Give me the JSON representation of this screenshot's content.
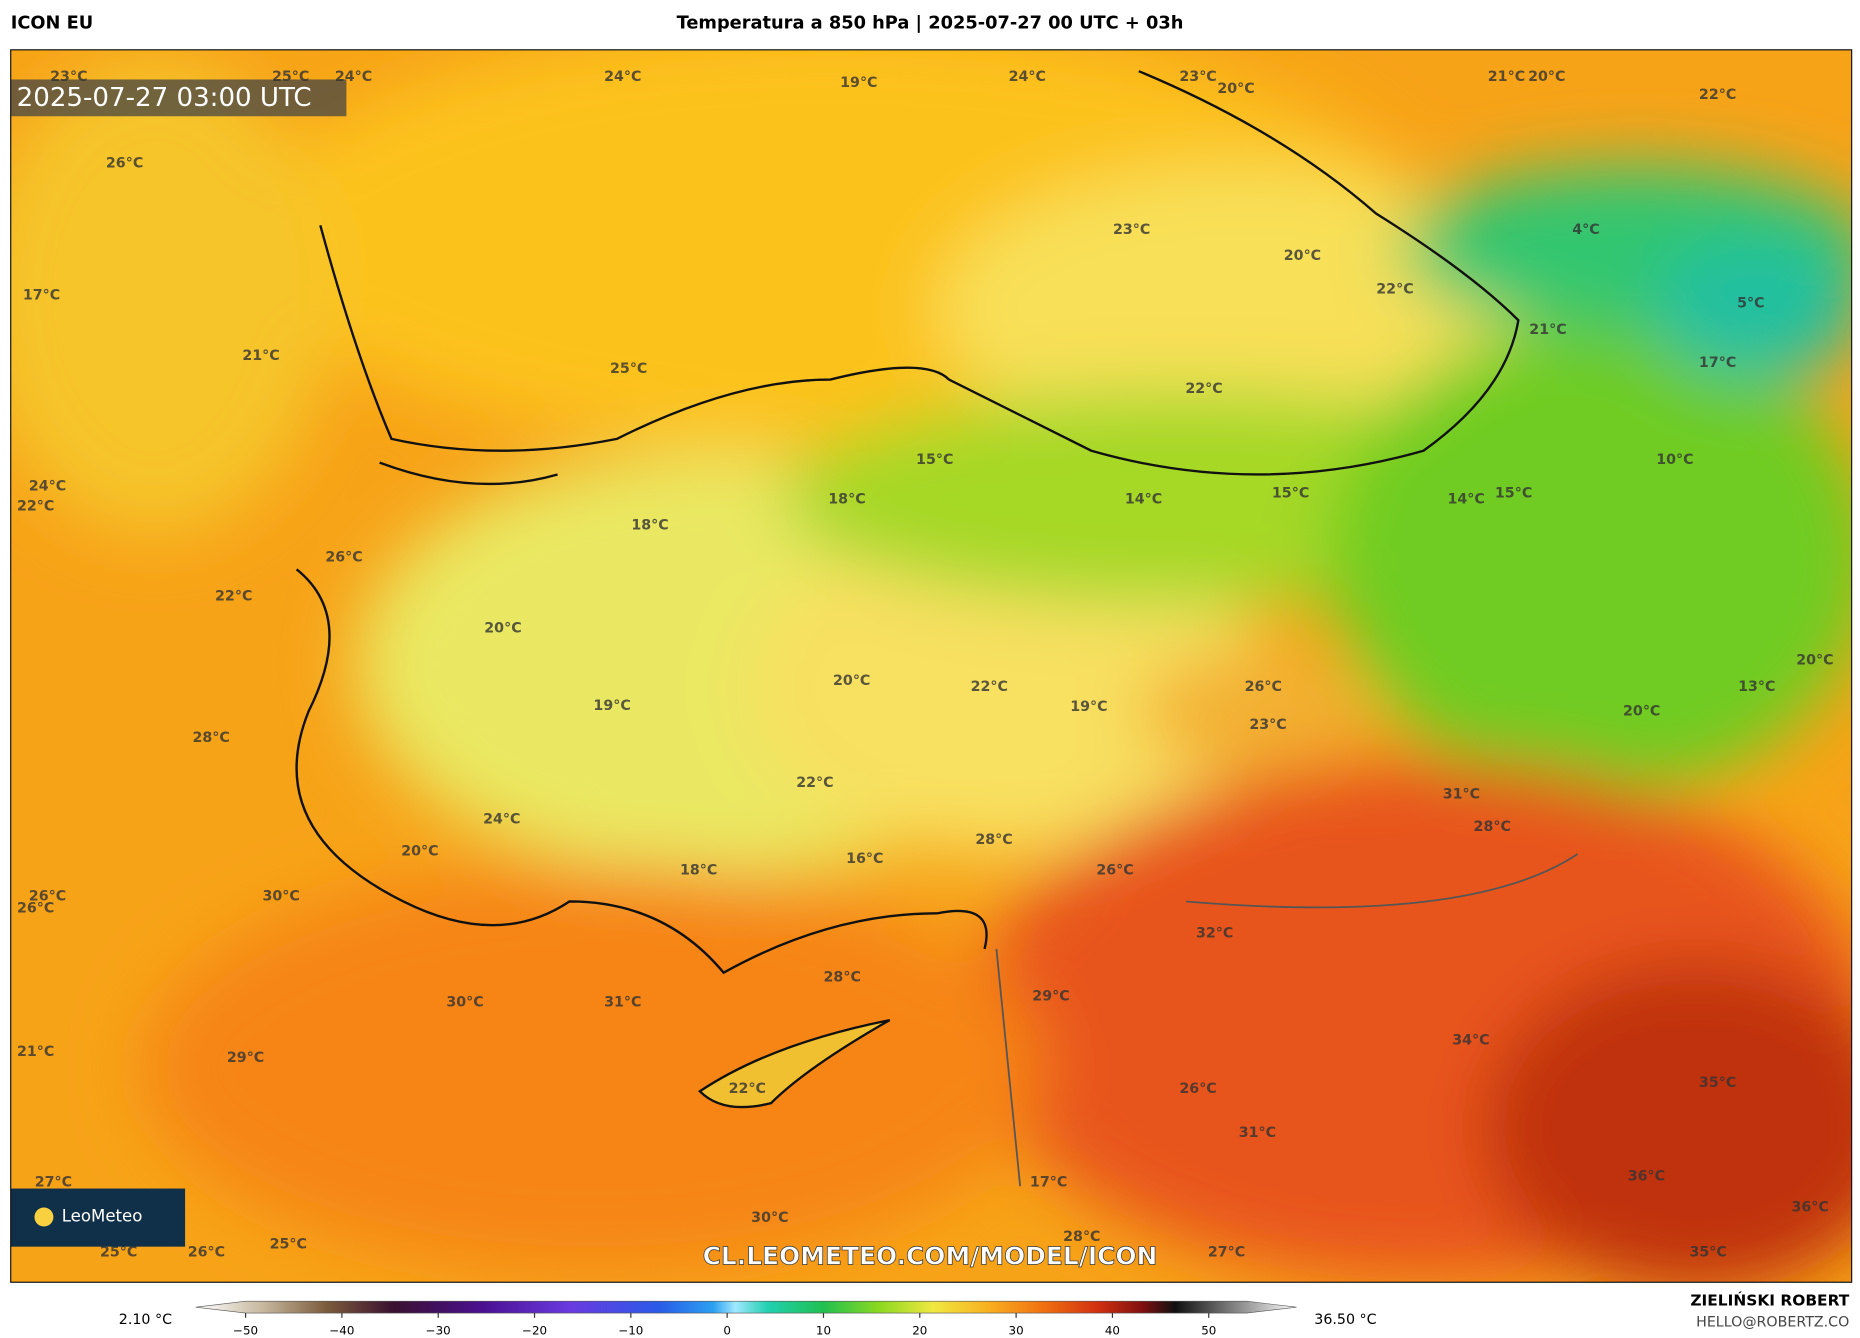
{
  "header": {
    "model": "ICON EU",
    "title": "Temperatura a 850 hPa | 2025-07-27 00 UTC + 03h"
  },
  "map": {
    "timestamp": "2025-07-27 03:00 UTC",
    "watermark": "CL.LEOMETEO.COM/MODEL/ICON",
    "logo": "LeoMeteo",
    "labels": [
      "23°C",
      "25°C",
      "24°C",
      "24°C",
      "19°C",
      "24°C",
      "23°C",
      "20°C",
      "21°C",
      "20°C",
      "22°C",
      "26°C",
      "23°C",
      "20°C",
      "22°C",
      "4°C",
      "5°C",
      "17°C",
      "21°C",
      "25°C",
      "22°C",
      "21°C",
      "17°C",
      "15°C",
      "10°C",
      "24°C",
      "22°C",
      "18°C",
      "14°C",
      "15°C",
      "14°C",
      "15°C",
      "18°C",
      "26°C",
      "22°C",
      "20°C",
      "20°C",
      "22°C",
      "19°C",
      "26°C",
      "13°C",
      "20°C",
      "19°C",
      "23°C",
      "20°C",
      "28°C",
      "22°C",
      "31°C",
      "28°C",
      "24°C",
      "20°C",
      "16°C",
      "28°C",
      "18°C",
      "26°C",
      "26°C",
      "30°C",
      "26°C",
      "32°C",
      "28°C",
      "30°C",
      "31°C",
      "29°C",
      "34°C",
      "21°C",
      "29°C",
      "22°C",
      "26°C",
      "35°C",
      "31°C",
      "27°C",
      "17°C",
      "36°C",
      "30°C",
      "36°C",
      "28°C",
      "25°C",
      "26°C",
      "25°C",
      "27°C",
      "35°C"
    ]
  },
  "colorbar": {
    "min_label": "2.10 °C",
    "max_label": "36.50 °C",
    "ticks": [
      {
        "value": -50,
        "label": "−50"
      },
      {
        "value": -40,
        "label": "−40"
      },
      {
        "value": -30,
        "label": "−30"
      },
      {
        "value": -20,
        "label": "−20"
      },
      {
        "value": -10,
        "label": "−10"
      },
      0,
      10,
      20,
      30,
      40,
      50
    ]
  },
  "footer": {
    "author": "ZIELIŃSKI ROBERT",
    "email": "HELLO@ROBERTZ.CO"
  }
}
